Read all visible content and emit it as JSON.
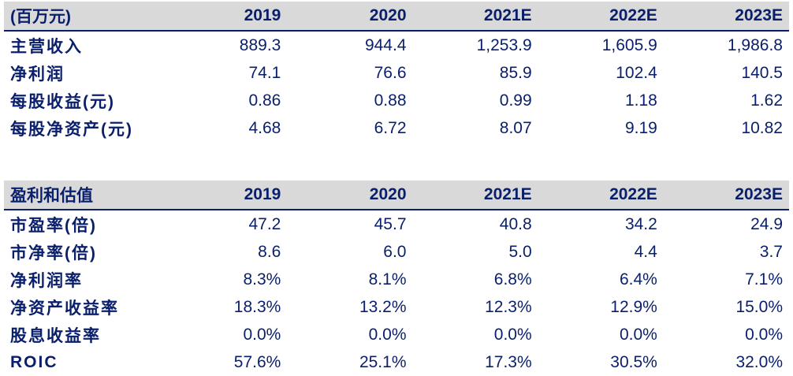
{
  "tables": [
    {
      "headers": [
        "(百万元)",
        "2019",
        "2020",
        "2021E",
        "2022E",
        "2023E"
      ],
      "rows": [
        {
          "label": "主营收入",
          "values": [
            "889.3",
            "944.4",
            "1,253.9",
            "1,605.9",
            "1,986.8"
          ]
        },
        {
          "label": "净利润",
          "values": [
            "74.1",
            "76.6",
            "85.9",
            "102.4",
            "140.5"
          ]
        },
        {
          "label": "每股收益(元)",
          "values": [
            "0.86",
            "0.88",
            "0.99",
            "1.18",
            "1.62"
          ]
        },
        {
          "label": "每股净资产(元)",
          "values": [
            "4.68",
            "6.72",
            "8.07",
            "9.19",
            "10.82"
          ]
        }
      ]
    },
    {
      "headers": [
        "盈利和估值",
        "2019",
        "2020",
        "2021E",
        "2022E",
        "2023E"
      ],
      "rows": [
        {
          "label": "市盈率(倍)",
          "values": [
            "47.2",
            "45.7",
            "40.8",
            "34.2",
            "24.9"
          ]
        },
        {
          "label": "市净率(倍)",
          "values": [
            "8.6",
            "6.0",
            "5.0",
            "4.4",
            "3.7"
          ]
        },
        {
          "label": "净利润率",
          "values": [
            "8.3%",
            "8.1%",
            "6.8%",
            "6.4%",
            "7.1%"
          ]
        },
        {
          "label": "净资产收益率",
          "values": [
            "18.3%",
            "13.2%",
            "12.3%",
            "12.9%",
            "15.0%"
          ]
        },
        {
          "label": "股息收益率",
          "values": [
            "0.0%",
            "0.0%",
            "0.0%",
            "0.0%",
            "0.0%"
          ]
        },
        {
          "label": "ROIC",
          "values": [
            "57.6%",
            "25.1%",
            "17.3%",
            "30.5%",
            "32.0%"
          ]
        }
      ]
    }
  ],
  "colors": {
    "text": "#0a1f6b",
    "header_background": "#d9d9d9"
  }
}
